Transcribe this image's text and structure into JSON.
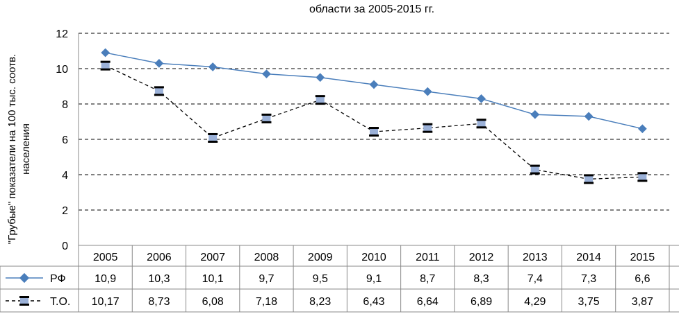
{
  "chart_data": {
    "type": "line",
    "title": "области за 2005-2015  гг.",
    "ylabel_line1": "\"Грубые\" показатели на 100 тыс. соотв.",
    "ylabel_line2": "населения",
    "ylim": [
      0,
      12
    ],
    "yticks": [
      "0",
      "2",
      "4",
      "6",
      "8",
      "10",
      "12"
    ],
    "ytick_values": [
      0,
      2,
      4,
      6,
      8,
      10,
      12
    ],
    "grid": true,
    "categories": [
      "2005",
      "2006",
      "2007",
      "2008",
      "2009",
      "2010",
      "2011",
      "2012",
      "2013",
      "2014",
      "2015"
    ],
    "series": [
      {
        "name": "РФ",
        "color": "#4a7ebb",
        "style": "solid-diamond",
        "values": [
          10.9,
          10.3,
          10.1,
          9.7,
          9.5,
          9.1,
          8.7,
          8.3,
          7.4,
          7.3,
          6.6
        ],
        "labels": [
          "10,9",
          "10,3",
          "10,1",
          "9,7",
          "9,5",
          "9,1",
          "8,7",
          "8,3",
          "7,4",
          "7,3",
          "6,6"
        ]
      },
      {
        "name": "Т.О.",
        "color": "#000000",
        "marker_fill": "#9bb1d8",
        "style": "dashed-square",
        "values": [
          10.17,
          8.73,
          6.08,
          7.18,
          8.23,
          6.43,
          6.64,
          6.89,
          4.29,
          3.75,
          3.87
        ],
        "labels": [
          "10,17",
          "8,73",
          "6,08",
          "7,18",
          "8,23",
          "6,43",
          "6,64",
          "6,89",
          "4,29",
          "3,75",
          "3,87"
        ]
      }
    ]
  }
}
